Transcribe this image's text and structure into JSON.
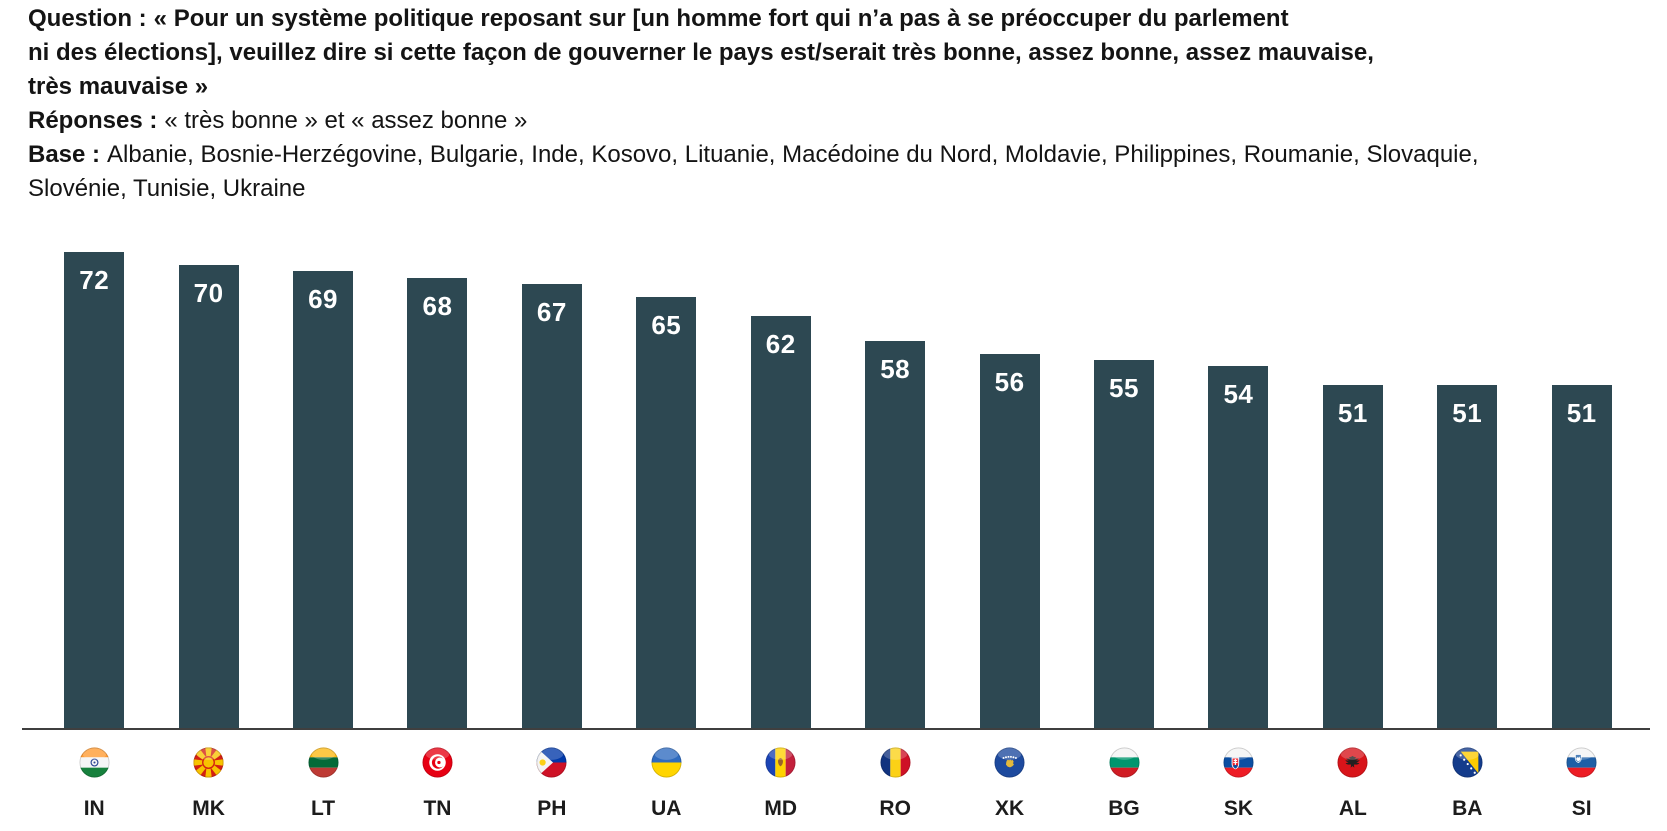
{
  "header": {
    "question_label": "Question :",
    "question_text": "« Pour un système politique reposant sur [un homme fort qui n’a pas à se préoccuper du parlement\nni des élections], veuillez dire si cette façon de gouverner le pays est/serait très bonne, assez bonne, assez mauvaise,\ntrès mauvaise »",
    "responses_label": "Réponses :",
    "responses_text": "« très bonne » et « assez bonne »",
    "base_label": "Base :",
    "base_text": "Albanie, Bosnie-Herzégovine, Bulgarie, Inde, Kosovo, Lituanie, Macédoine du Nord, Moldavie, Philippines, Roumanie, Slovaquie,\nSlovénie, Tunisie, Ukraine"
  },
  "chart_data": {
    "type": "bar",
    "title": "",
    "categories": [
      "IN",
      "MK",
      "LT",
      "TN",
      "PH",
      "UA",
      "MD",
      "RO",
      "XK",
      "BG",
      "SK",
      "AL",
      "BA",
      "SI"
    ],
    "values": [
      72,
      70,
      69,
      68,
      67,
      65,
      62,
      58,
      56,
      55,
      54,
      51,
      51,
      51
    ],
    "flag_icons": [
      "flag-india-icon",
      "flag-north-macedonia-icon",
      "flag-lithuania-icon",
      "flag-tunisia-icon",
      "flag-philippines-icon",
      "flag-ukraine-icon",
      "flag-moldova-icon",
      "flag-romania-icon",
      "flag-kosovo-icon",
      "flag-bulgaria-icon",
      "flag-slovakia-icon",
      "flag-albania-icon",
      "flag-bosnia-herzegovina-icon",
      "flag-slovenia-icon"
    ],
    "value_label_position": "inside-top",
    "bar_color": "#2D4852",
    "value_label_color": "#FFFFFF",
    "axis_line_color": "#3F3F3F",
    "xlabel": "",
    "ylabel": "",
    "ylim": [
      0,
      75
    ],
    "grid": false,
    "legend": "none"
  }
}
